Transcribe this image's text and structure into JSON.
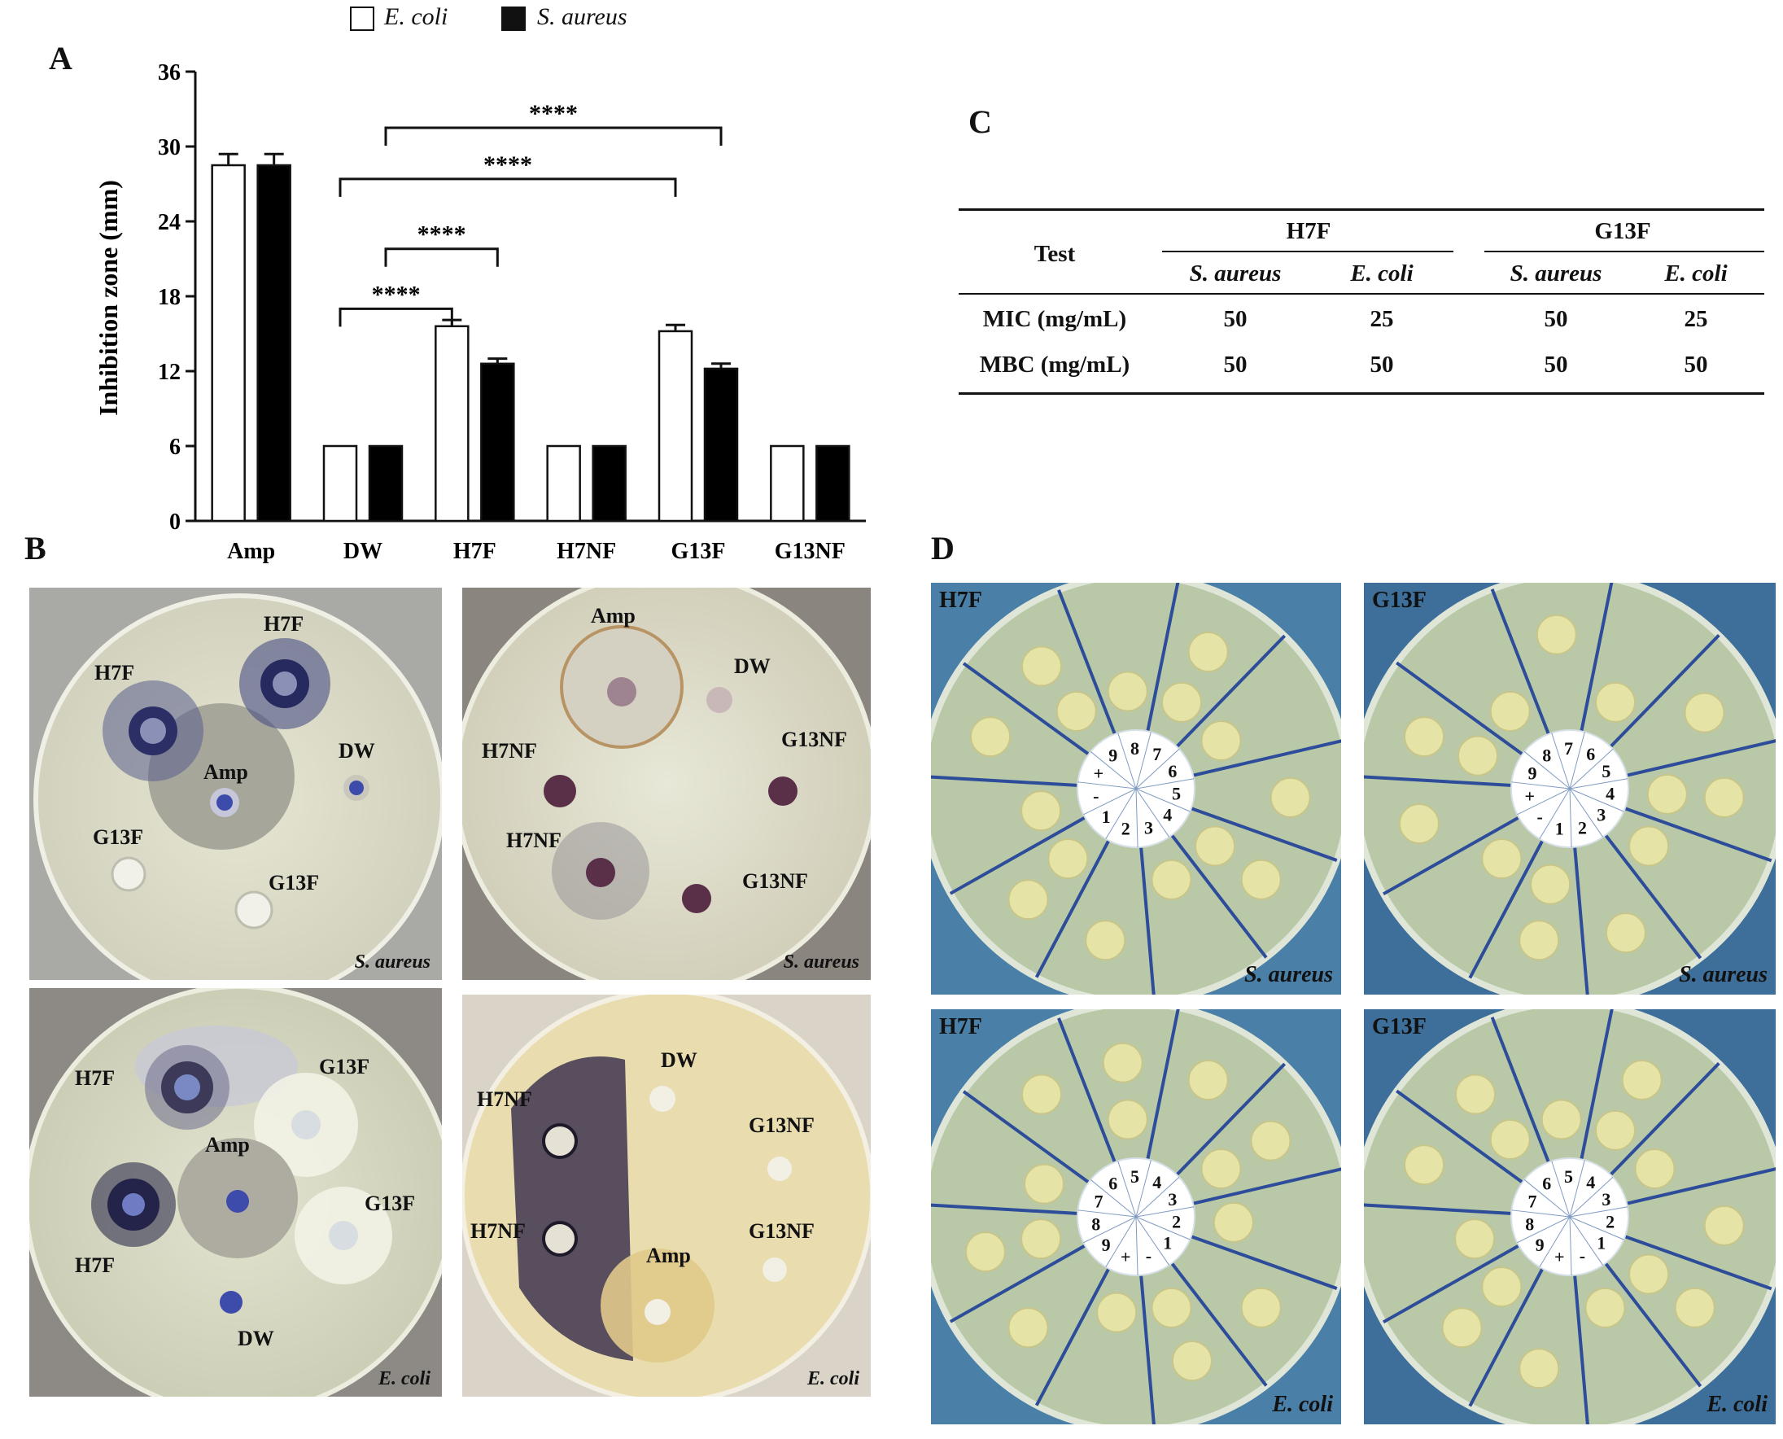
{
  "legend": [
    {
      "name": "E. coli",
      "color": "#ffffff"
    },
    {
      "name": "S. aureus",
      "color": "#000000"
    }
  ],
  "panels": {
    "a": "A",
    "b": "B",
    "c": "C",
    "d": "D"
  },
  "chart_data": {
    "type": "bar",
    "categories": [
      "Amp",
      "DW",
      "H7F",
      "H7NF",
      "G13F",
      "G13NF"
    ],
    "series": [
      {
        "name": "E. coli",
        "values": [
          28.5,
          6,
          15.6,
          6,
          15.2,
          6
        ],
        "errors": [
          0.9,
          0,
          0.5,
          0,
          0.5,
          0
        ]
      },
      {
        "name": "S. aureus",
        "values": [
          28.5,
          6,
          12.6,
          6,
          12.2,
          6
        ],
        "errors": [
          0.9,
          0,
          0.4,
          0,
          0.4,
          0
        ]
      }
    ],
    "ylabel": "Inhibition zone (mm)",
    "ylim": [
      0,
      36
    ],
    "yticks": [
      0,
      6,
      12,
      18,
      24,
      30,
      36
    ],
    "significance": [
      {
        "from": "DW",
        "to": "H7F",
        "label": "****"
      },
      {
        "from": "DW",
        "to": "H7F",
        "label": "****"
      },
      {
        "from": "DW",
        "to": "G13F",
        "label": "****"
      },
      {
        "from": "DW",
        "to": "G13F",
        "label": "****"
      }
    ]
  },
  "table": {
    "header_test": "Test",
    "groups": [
      "H7F",
      "G13F"
    ],
    "subheaders": [
      "S. aureus",
      "E. coli",
      "S. aureus",
      "E. coli"
    ],
    "rows": [
      {
        "label": "MIC (mg/mL)",
        "values": [
          "50",
          "25",
          "50",
          "25"
        ]
      },
      {
        "label": "MBC (mg/mL)",
        "values": [
          "50",
          "50",
          "50",
          "50"
        ]
      }
    ]
  },
  "plates_b": [
    {
      "organism": "S. aureus",
      "wells": [
        "H7F",
        "H7F",
        "Amp",
        "DW",
        "G13F",
        "G13F"
      ]
    },
    {
      "organism": "S. aureus",
      "wells": [
        "Amp",
        "DW",
        "H7NF",
        "G13NF",
        "H7NF",
        "G13NF"
      ]
    },
    {
      "organism": "E. coli",
      "wells": [
        "H7F",
        "G13F",
        "Amp",
        "H7F",
        "G13F",
        "DW"
      ]
    },
    {
      "organism": "E. coli",
      "wells": [
        "DW",
        "H7NF",
        "G13NF",
        "H7NF",
        "G13NF",
        "Amp"
      ]
    }
  ],
  "plates_d": [
    {
      "sample": "H7F",
      "organism": "S. aureus",
      "sectors": [
        "9",
        "8",
        "7",
        "6",
        "5",
        "4",
        "3",
        "2",
        "1",
        "-",
        "+"
      ]
    },
    {
      "sample": "G13F",
      "organism": "S. aureus",
      "sectors": [
        "8",
        "7",
        "6",
        "5",
        "4",
        "3",
        "2",
        "1",
        "-",
        "+",
        "9"
      ]
    },
    {
      "sample": "H7F",
      "organism": "E. coli",
      "sectors": [
        "6",
        "5",
        "4",
        "3",
        "2",
        "1",
        "-",
        "+",
        "9",
        "8",
        "7"
      ]
    },
    {
      "sample": "G13F",
      "organism": "E. coli",
      "sectors": [
        "6",
        "5",
        "4",
        "3",
        "2",
        "1",
        "-",
        "+",
        "9",
        "8",
        "7"
      ]
    }
  ]
}
